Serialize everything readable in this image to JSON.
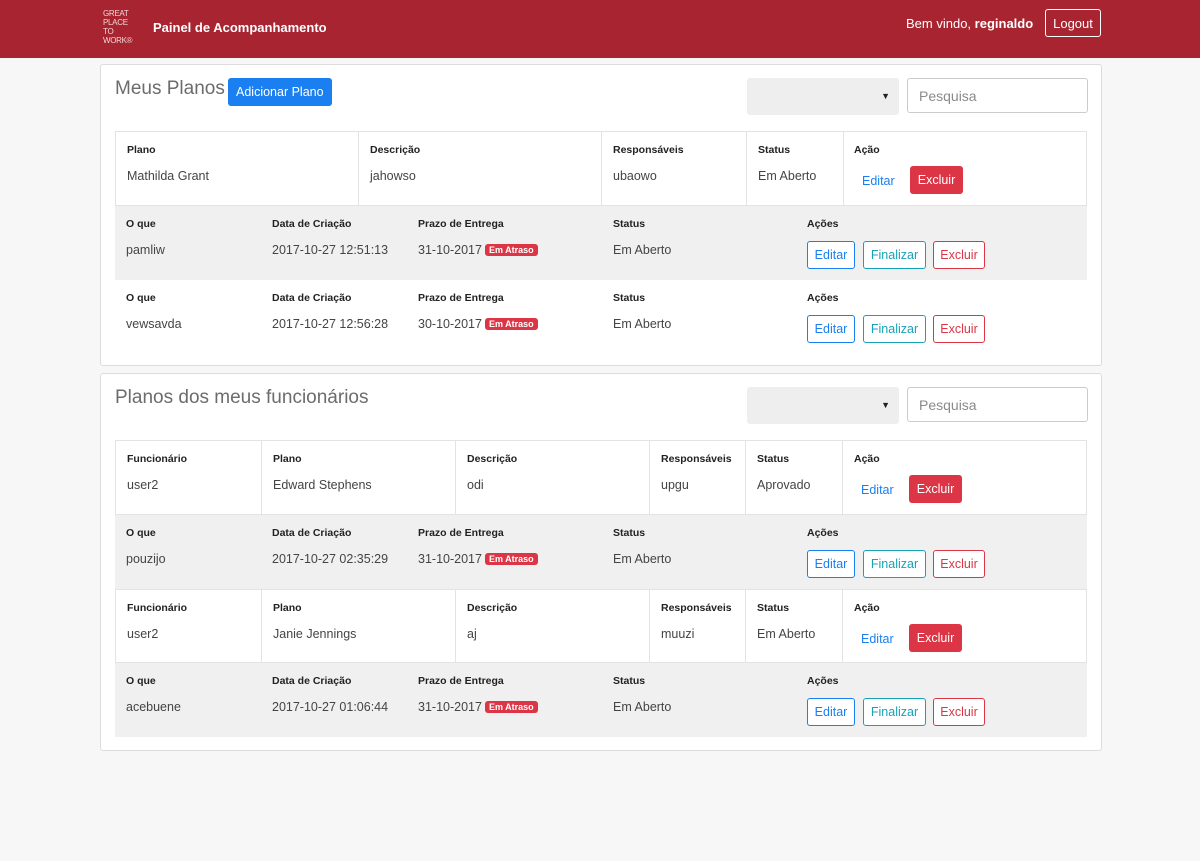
{
  "nav": {
    "logo_lines": [
      "GREAT",
      "PLACE",
      "TO",
      "WORK®"
    ],
    "brand": "Painel de Acompanhamento",
    "welcome_prefix": "Bem vindo, ",
    "username": "reginaldo",
    "logout": "Logout"
  },
  "section1": {
    "title": "Meus Planos",
    "add_button": "Adicionar Plano",
    "search_placeholder": "Pesquisa",
    "plan_headers": [
      "Plano",
      "Descrição",
      "Responsáveis",
      "Status",
      "Ação"
    ],
    "plan": {
      "plano": "Mathilda Grant",
      "descricao": "jahowso",
      "responsaveis": "ubaowo",
      "status": "Em Aberto",
      "edit": "Editar",
      "delete": "Excluir"
    },
    "task_headers": [
      "O que",
      "Data de Criação",
      "Prazo de Entrega",
      "Status",
      "Ações"
    ],
    "tasks": [
      {
        "oque": "pamliw",
        "criacao": "2017-10-27 12:51:13",
        "prazo": "31-10-2017",
        "badge": "Em Atraso",
        "status": "Em Aberto",
        "edit": "Editar",
        "finish": "Finalizar",
        "delete": "Excluir"
      },
      {
        "oque": "vewsavda",
        "criacao": "2017-10-27 12:56:28",
        "prazo": "30-10-2017",
        "badge": "Em Atraso",
        "status": "Em Aberto",
        "edit": "Editar",
        "finish": "Finalizar",
        "delete": "Excluir"
      }
    ]
  },
  "section2": {
    "title": "Planos dos meus funcionários",
    "search_placeholder": "Pesquisa",
    "plan_headers": [
      "Funcionário",
      "Plano",
      "Descrição",
      "Responsáveis",
      "Status",
      "Ação"
    ],
    "task_headers": [
      "O que",
      "Data de Criação",
      "Prazo de Entrega",
      "Status",
      "Ações"
    ],
    "groups": [
      {
        "plan": {
          "funcionario": "user2",
          "plano": "Edward Stephens",
          "descricao": "odi",
          "responsaveis": "upgu",
          "status": "Aprovado",
          "edit": "Editar",
          "delete": "Excluir"
        },
        "task": {
          "oque": "pouzijo",
          "criacao": "2017-10-27 02:35:29",
          "prazo": "31-10-2017",
          "badge": "Em Atraso",
          "status": "Em Aberto",
          "edit": "Editar",
          "finish": "Finalizar",
          "delete": "Excluir"
        }
      },
      {
        "plan": {
          "funcionario": "user2",
          "plano": "Janie Jennings",
          "descricao": "aj",
          "responsaveis": "muuzi",
          "status": "Em Aberto",
          "edit": "Editar",
          "delete": "Excluir"
        },
        "task": {
          "oque": "acebuene",
          "criacao": "2017-10-27 01:06:44",
          "prazo": "31-10-2017",
          "badge": "Em Atraso",
          "status": "Em Aberto",
          "edit": "Editar",
          "finish": "Finalizar",
          "delete": "Excluir"
        }
      }
    ]
  },
  "colors": {
    "navbar": "#a72430",
    "primary": "#1a7ff0",
    "danger": "#dc3545",
    "info": "#17a2b8"
  }
}
